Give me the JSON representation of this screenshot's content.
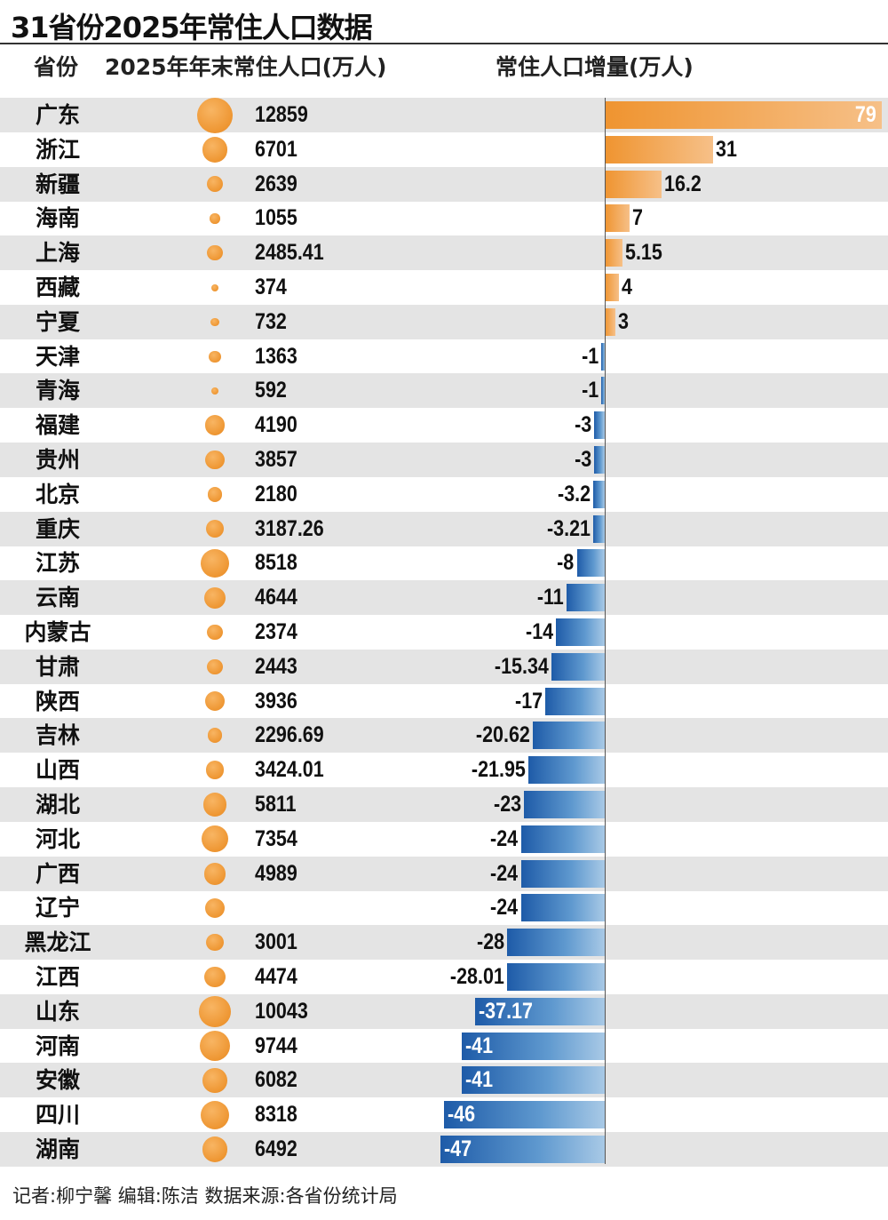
{
  "title": "31省份2025年常住人口数据",
  "headers": {
    "province": "省份",
    "population": "2025年年末常住人口(万人)",
    "increase": "常住人口增量(万人)"
  },
  "colors": {
    "positive": "#ef9430",
    "negative": "#1e5ba8",
    "dot": "#ee9632"
  },
  "chart_data": {
    "type": "bar",
    "categories": [
      "广东",
      "浙江",
      "新疆",
      "海南",
      "上海",
      "西藏",
      "宁夏",
      "天津",
      "青海",
      "福建",
      "贵州",
      "北京",
      "重庆",
      "江苏",
      "云南",
      "内蒙古",
      "甘肃",
      "陕西",
      "吉林",
      "山西",
      "湖北",
      "河北",
      "广西",
      "辽宁",
      "黑龙江",
      "江西",
      "山东",
      "河南",
      "安徽",
      "四川",
      "湖南"
    ],
    "population": [
      "12859",
      "6701",
      "2639",
      "1055",
      "2485.41",
      "374",
      "732",
      "1363",
      "592",
      "4190",
      "3857",
      "2180",
      "3187.26",
      "8518",
      "4644",
      "2374",
      "2443",
      "3936",
      "2296.69",
      "3424.01",
      "5811",
      "7354",
      "4989",
      "",
      "3001",
      "4474",
      "10043",
      "9744",
      "6082",
      "8318",
      "6492"
    ],
    "increase": [
      79,
      31,
      16.2,
      7,
      5.15,
      4,
      3,
      -1,
      -1,
      -3,
      -3,
      -3.2,
      -3.21,
      -8,
      -11,
      -14,
      -15.34,
      -17,
      -20.62,
      -21.95,
      -23,
      -24,
      -24,
      -24,
      -28,
      -28.01,
      -37.17,
      -41,
      -41,
      -46,
      -47
    ],
    "increase_labels": [
      "79",
      "31",
      "16.2",
      "7",
      "5.15",
      "4",
      "3",
      "-1",
      "-1",
      "-3",
      "-3",
      "-3.2",
      "-3.21",
      "-8",
      "-11",
      "-14",
      "-15.34",
      "-17",
      "-20.62",
      "-21.95",
      "-23",
      "-24",
      "-24",
      "-24",
      "-28",
      "-28.01",
      "-37.17",
      "-41",
      "-41",
      "-46",
      "-47"
    ]
  },
  "footer": "记者:柳宁馨   编辑:陈洁   数据来源:各省份统计局"
}
